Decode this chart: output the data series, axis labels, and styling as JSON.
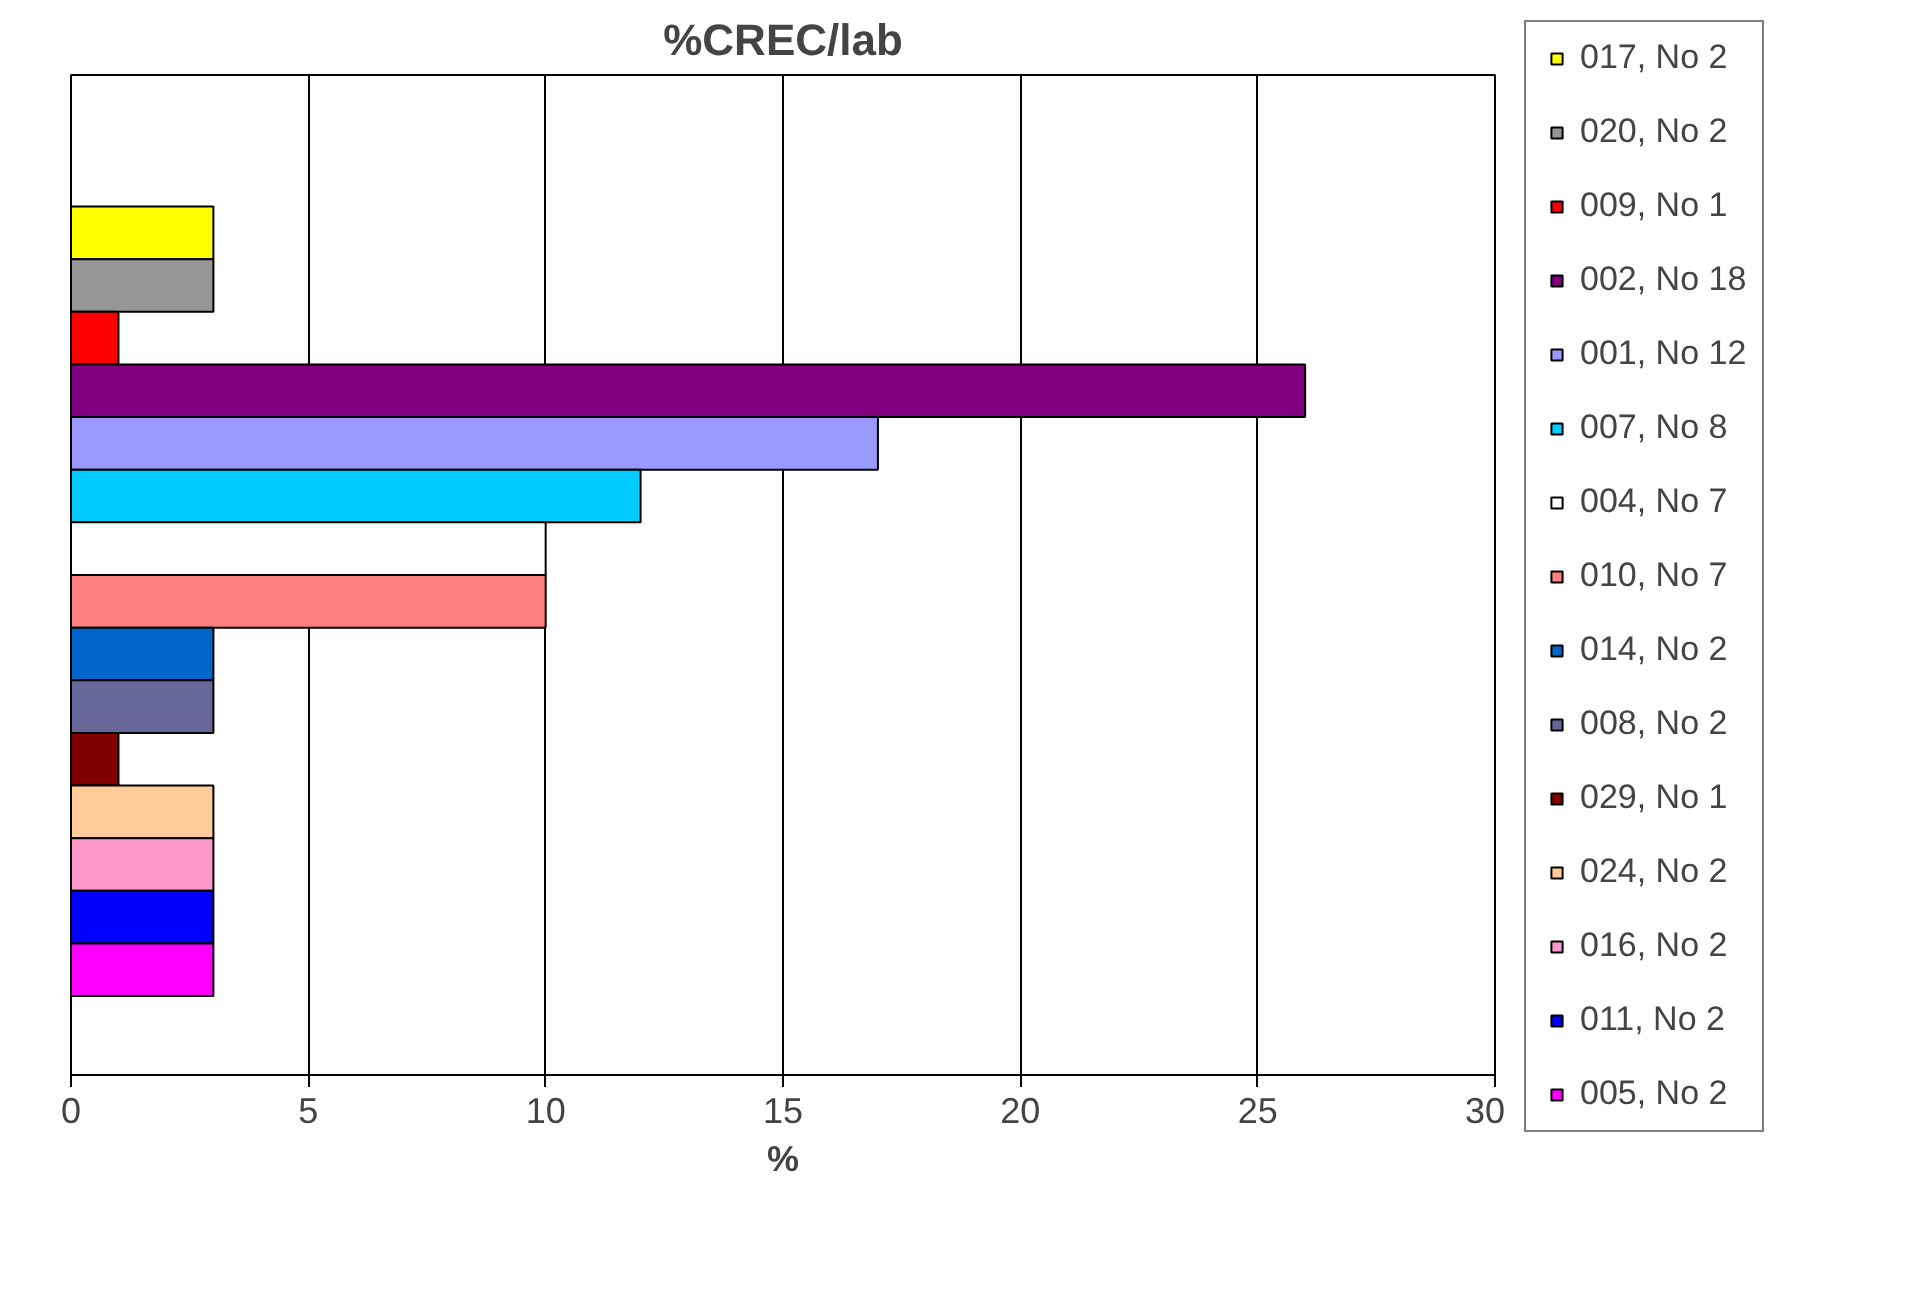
{
  "chart_data": {
    "type": "bar",
    "orientation": "horizontal",
    "title": "%CREC/lab",
    "xlabel": "%",
    "categories": [
      null
    ],
    "series": [
      {
        "name": "017, No 2",
        "color": "#ffff00",
        "values": [
          3
        ]
      },
      {
        "name": "020, No 2",
        "color": "#969696",
        "values": [
          3
        ]
      },
      {
        "name": "009, No 1",
        "color": "#ff0000",
        "values": [
          1
        ]
      },
      {
        "name": "002, No 18",
        "color": "#800080",
        "values": [
          26
        ]
      },
      {
        "name": "001, No 12",
        "color": "#9999ff",
        "values": [
          17
        ]
      },
      {
        "name": "007, No 8",
        "color": "#00ccff",
        "values": [
          12
        ]
      },
      {
        "name": "004, No 7",
        "color": "#ffffff",
        "values": [
          10
        ]
      },
      {
        "name": "010, No 7",
        "color": "#ff8080",
        "values": [
          10
        ]
      },
      {
        "name": "014, No 2",
        "color": "#0066cc",
        "values": [
          3
        ]
      },
      {
        "name": "008, No 2",
        "color": "#666699",
        "values": [
          3
        ]
      },
      {
        "name": "029, No 1",
        "color": "#800000",
        "values": [
          1
        ]
      },
      {
        "name": "024, No 2",
        "color": "#ffcc99",
        "values": [
          3
        ]
      },
      {
        "name": "016, No 2",
        "color": "#ff99cc",
        "values": [
          3
        ]
      },
      {
        "name": "011, No 2",
        "color": "#0000ff",
        "values": [
          3
        ]
      },
      {
        "name": "005, No 2",
        "color": "#ff00ff",
        "values": [
          3
        ]
      }
    ],
    "xlim": [
      0,
      30
    ],
    "xticks": [
      0,
      5,
      10,
      15,
      20,
      25,
      30
    ],
    "grid": "x",
    "legend": "right",
    "tick_labels": "x"
  }
}
